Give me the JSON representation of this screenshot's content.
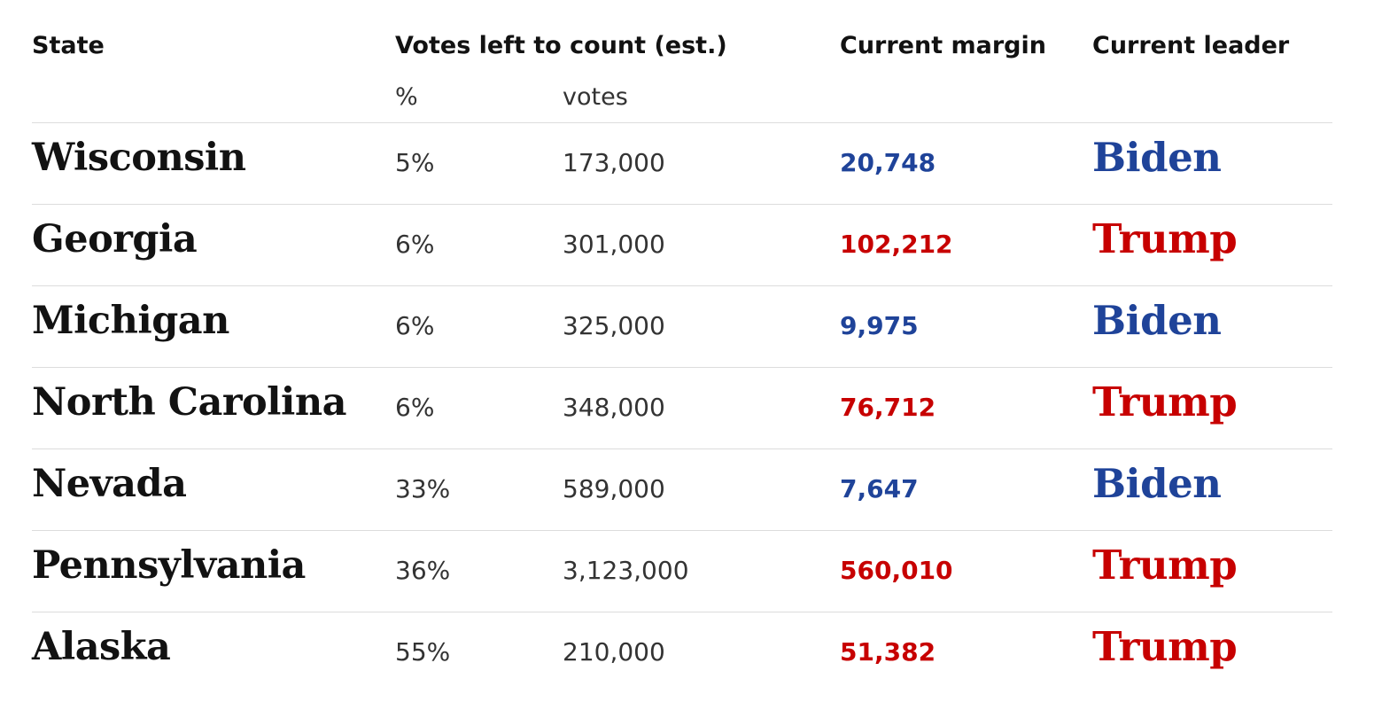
{
  "colors": {
    "biden": "#1f4399",
    "trump": "#c70000"
  },
  "chart_data": {
    "type": "table",
    "columns": {
      "state": "State",
      "votes_left": "Votes left to count (est.)",
      "votes_left_pct": "%",
      "votes_left_votes": "votes",
      "margin": "Current margin",
      "leader": "Current leader"
    },
    "rows": [
      {
        "state": "Wisconsin",
        "pct": "5%",
        "votes": "173,000",
        "margin": "20,748",
        "leader": "Biden"
      },
      {
        "state": "Georgia",
        "pct": "6%",
        "votes": "301,000",
        "margin": "102,212",
        "leader": "Trump"
      },
      {
        "state": "Michigan",
        "pct": "6%",
        "votes": "325,000",
        "margin": "9,975",
        "leader": "Biden"
      },
      {
        "state": "North Carolina",
        "pct": "6%",
        "votes": "348,000",
        "margin": "76,712",
        "leader": "Trump"
      },
      {
        "state": "Nevada",
        "pct": "33%",
        "votes": "589,000",
        "margin": "7,647",
        "leader": "Biden"
      },
      {
        "state": "Pennsylvania",
        "pct": "36%",
        "votes": "3,123,000",
        "margin": "560,010",
        "leader": "Trump"
      },
      {
        "state": "Alaska",
        "pct": "55%",
        "votes": "210,000",
        "margin": "51,382",
        "leader": "Trump"
      }
    ]
  }
}
